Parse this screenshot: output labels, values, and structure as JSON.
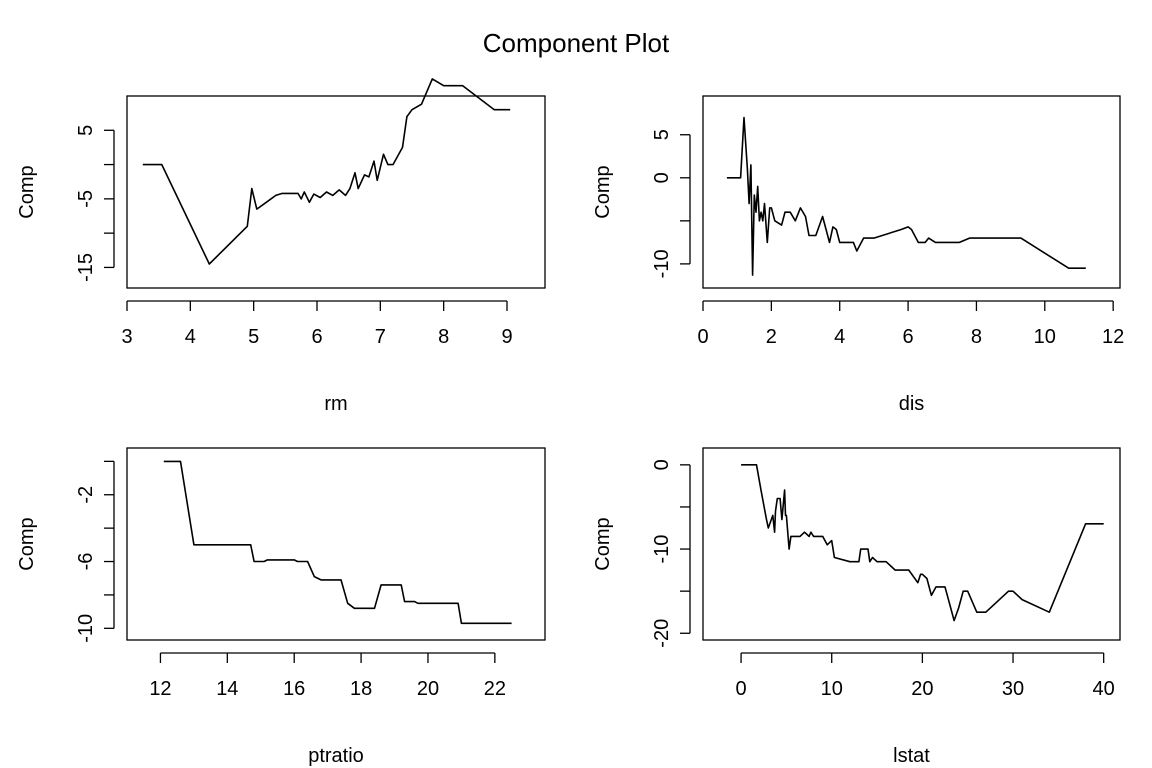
{
  "title": "Component Plot",
  "chart_data": [
    {
      "type": "line",
      "xlabel": "rm",
      "ylabel": "Comp",
      "xlim": [
        3.0,
        9.6
      ],
      "ylim": [
        -18,
        10
      ],
      "xticks": [
        3,
        4,
        5,
        6,
        7,
        8,
        9
      ],
      "yticks": [
        5,
        0,
        -5,
        -10,
        -15
      ],
      "ytick_labels": [
        "5",
        "",
        "-5",
        "",
        "-15"
      ],
      "x": [
        3.25,
        3.55,
        4.3,
        4.9,
        4.97,
        5.05,
        5.2,
        5.35,
        5.45,
        5.7,
        5.75,
        5.8,
        5.88,
        5.95,
        6.05,
        6.15,
        6.25,
        6.35,
        6.45,
        6.52,
        6.6,
        6.65,
        6.75,
        6.82,
        6.9,
        6.95,
        7.05,
        7.12,
        7.2,
        7.35,
        7.42,
        7.5,
        7.65,
        7.82,
        8.0,
        8.3,
        8.8,
        9.05
      ],
      "y": [
        0,
        0,
        -14.5,
        -9,
        -3.5,
        -6.5,
        -5.5,
        -4.5,
        -4.2,
        -4.2,
        -5,
        -4,
        -5.5,
        -4.3,
        -4.8,
        -4,
        -4.5,
        -3.7,
        -4.5,
        -3.5,
        -1.2,
        -3.5,
        -1.5,
        -1.8,
        0.5,
        -2.3,
        1.5,
        0,
        0,
        2.5,
        7,
        8,
        8.8,
        12.5,
        11.5,
        11.5,
        8,
        8
      ]
    },
    {
      "type": "line",
      "xlabel": "dis",
      "ylabel": "Comp",
      "xlim": [
        0,
        12.2
      ],
      "ylim": [
        -12.8,
        9.5
      ],
      "xticks": [
        0,
        2,
        4,
        6,
        8,
        10,
        12
      ],
      "yticks": [
        5,
        0,
        -5,
        -10
      ],
      "ytick_labels": [
        "5",
        "0",
        "",
        "-10"
      ],
      "x": [
        0.7,
        1.1,
        1.2,
        1.3,
        1.35,
        1.4,
        1.45,
        1.5,
        1.55,
        1.6,
        1.65,
        1.7,
        1.75,
        1.8,
        1.88,
        1.95,
        2.0,
        2.1,
        2.3,
        2.4,
        2.55,
        2.7,
        2.85,
        3.0,
        3.1,
        3.2,
        3.3,
        3.5,
        3.7,
        3.8,
        3.9,
        4.0,
        4.1,
        4.4,
        4.5,
        4.7,
        4.8,
        5.0,
        5.8,
        6.0,
        6.1,
        6.3,
        6.5,
        6.6,
        6.8,
        7.0,
        7.5,
        7.8,
        7.9,
        8.5,
        9.3,
        10.7,
        11.2
      ],
      "y": [
        0,
        0,
        7,
        1,
        -3,
        1.5,
        -11.3,
        -2,
        -4,
        -1,
        -5,
        -4,
        -5,
        -3,
        -7.5,
        -3.5,
        -3.5,
        -5,
        -5.5,
        -4,
        -4,
        -5,
        -3.5,
        -4.5,
        -6.7,
        -6.7,
        -6.7,
        -4.5,
        -7.5,
        -5.7,
        -6,
        -7.5,
        -7.5,
        -7.5,
        -8.5,
        -7,
        -7,
        -7,
        -6,
        -5.7,
        -6,
        -7.5,
        -7.5,
        -7,
        -7.5,
        -7.5,
        -7.5,
        -7,
        -7,
        -7,
        -7,
        -10.5,
        -10.5
      ]
    },
    {
      "type": "line",
      "xlabel": "ptratio",
      "ylabel": "Comp",
      "xlim": [
        11.0,
        23.5
      ],
      "ylim": [
        -10.7,
        0.8
      ],
      "xticks": [
        12,
        14,
        16,
        18,
        20,
        22
      ],
      "yticks": [
        0,
        -2,
        -4,
        -6,
        -8,
        -10
      ],
      "ytick_labels": [
        "",
        "-2",
        "",
        "-6",
        "",
        "-10"
      ],
      "x": [
        12.1,
        12.6,
        13.0,
        14.7,
        14.8,
        15.1,
        15.2,
        16.0,
        16.1,
        16.4,
        16.6,
        16.8,
        17.4,
        17.6,
        17.8,
        18.4,
        18.6,
        18.7,
        19.2,
        19.3,
        19.6,
        19.7,
        20.9,
        21.0,
        21.2,
        22.5
      ],
      "y": [
        0,
        0,
        -5,
        -5,
        -6,
        -6,
        -5.9,
        -5.9,
        -6,
        -6,
        -6.9,
        -7.1,
        -7.1,
        -8.5,
        -8.8,
        -8.8,
        -7.4,
        -7.4,
        -7.4,
        -8.4,
        -8.4,
        -8.5,
        -8.5,
        -9.7,
        -9.7,
        -9.7
      ]
    },
    {
      "type": "line",
      "xlabel": "lstat",
      "ylabel": "Comp",
      "xlim": [
        -4.2,
        41.8
      ],
      "ylim": [
        -20.8,
        2.0
      ],
      "xticks": [
        0,
        10,
        20,
        30,
        40
      ],
      "yticks": [
        0,
        -5,
        -10,
        -15,
        -20
      ],
      "ytick_labels": [
        "0",
        "",
        "-10",
        "",
        "-20"
      ],
      "x": [
        0,
        1.7,
        2.2,
        2.8,
        3.0,
        3.5,
        3.7,
        3.8,
        4.0,
        4.3,
        4.5,
        4.8,
        4.9,
        5.0,
        5.3,
        5.5,
        5.7,
        6.5,
        7.0,
        7.5,
        7.7,
        8.0,
        8.5,
        9.0,
        9.5,
        10.0,
        10.3,
        12.0,
        13.0,
        13.2,
        14.0,
        14.2,
        14.5,
        15.0,
        16.0,
        17.0,
        17.5,
        18.0,
        18.5,
        19.5,
        19.8,
        20.0,
        20.5,
        21.0,
        21.5,
        22.5,
        23.0,
        23.5,
        24.0,
        24.5,
        25.0,
        26.0,
        27.0,
        29.5,
        30.0,
        31.0,
        34.0,
        38.0,
        40.0
      ],
      "y": [
        0,
        0,
        -3,
        -6.5,
        -7.5,
        -6,
        -8,
        -5.5,
        -4,
        -4,
        -6.5,
        -3,
        -6,
        -6,
        -10,
        -8.5,
        -8.5,
        -8.5,
        -8,
        -8.5,
        -8,
        -8.5,
        -8.5,
        -8.5,
        -9.5,
        -9,
        -11,
        -11.5,
        -11.5,
        -10,
        -10,
        -11.5,
        -11,
        -11.5,
        -11.5,
        -12.5,
        -12.5,
        -12.5,
        -12.5,
        -14,
        -13,
        -13,
        -13.5,
        -15.5,
        -14.5,
        -14.5,
        -16.5,
        -18.5,
        -17,
        -15,
        -15,
        -17.5,
        -17.5,
        -15,
        -15,
        -16,
        -17.5,
        -7,
        -7
      ]
    }
  ]
}
